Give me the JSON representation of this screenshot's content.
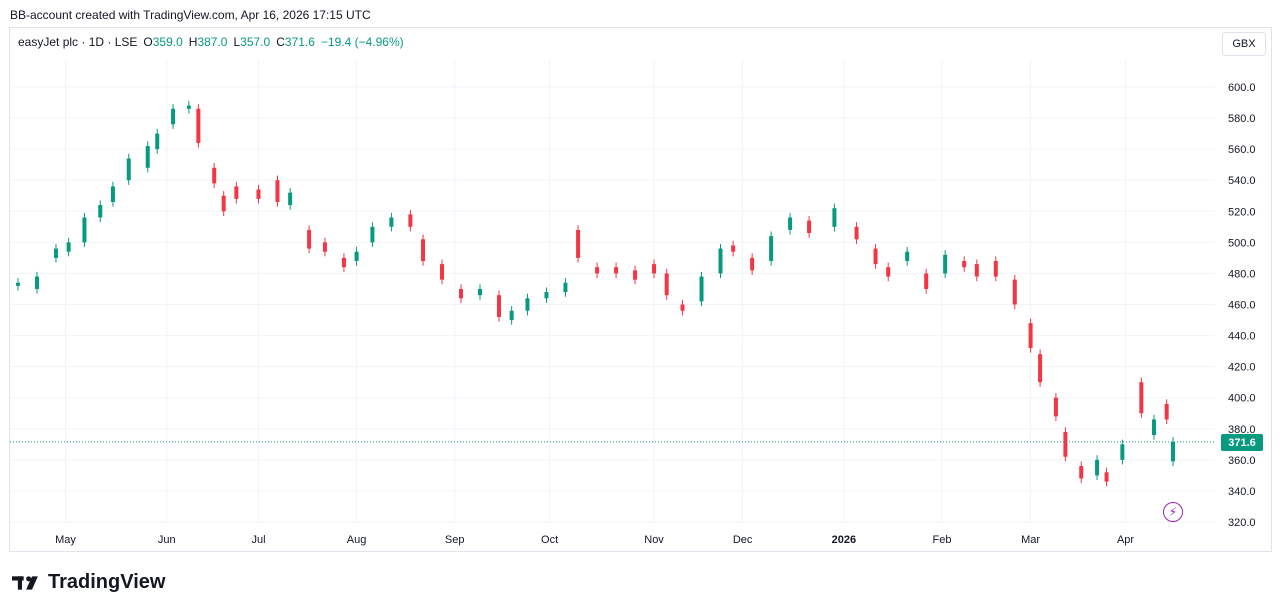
{
  "header": {
    "text": "BB-account created with TradingView.com, Apr 16, 2026 17:15 UTC"
  },
  "legend": {
    "symbol": "easyJet plc · 1D · LSE",
    "o_label": "O",
    "o_value": "359.0",
    "h_label": "H",
    "h_value": "387.0",
    "l_label": "L",
    "l_value": "357.0",
    "c_label": "C",
    "c_value": "371.6",
    "change": "−19.4 (−4.96%)"
  },
  "currency": "GBX",
  "last_price_label": "371.6",
  "brand": {
    "name": "TradingView",
    "icon": "tradingview-logo-icon"
  },
  "colors": {
    "up": "#089981",
    "down": "#f23645",
    "grid": "#f0f3fa",
    "text": "#131722"
  },
  "chart_data": {
    "type": "candlestick",
    "title": "",
    "xlabel": "",
    "ylabel": "",
    "ylim": [
      320,
      610
    ],
    "y_ticks": [
      "600.0",
      "580.0",
      "560.0",
      "540.0",
      "520.0",
      "500.0",
      "480.0",
      "460.0",
      "440.0",
      "420.0",
      "400.0",
      "380.0",
      "360.0",
      "340.0",
      "320.0"
    ],
    "x_ticks": [
      {
        "label": "May",
        "date": "2025-05-01"
      },
      {
        "label": "Jun",
        "date": "2025-06-02"
      },
      {
        "label": "Jul",
        "date": "2025-07-01"
      },
      {
        "label": "Aug",
        "date": "2025-08-01"
      },
      {
        "label": "Sep",
        "date": "2025-09-01"
      },
      {
        "label": "Oct",
        "date": "2025-10-01"
      },
      {
        "label": "Nov",
        "date": "2025-11-03"
      },
      {
        "label": "Dec",
        "date": "2025-12-01"
      },
      {
        "label": "2026",
        "date": "2026-01-02",
        "bold": true
      },
      {
        "label": "Feb",
        "date": "2026-02-02"
      },
      {
        "label": "Mar",
        "date": "2026-03-02"
      },
      {
        "label": "Apr",
        "date": "2026-04-01"
      }
    ],
    "date_range": [
      "2025-04-16",
      "2026-04-16"
    ],
    "last_price": 371.6,
    "series": [
      {
        "date": "2025-04-16",
        "o": 472,
        "c": 474
      },
      {
        "date": "2025-04-22",
        "o": 470,
        "c": 478
      },
      {
        "date": "2025-04-28",
        "o": 490,
        "c": 496
      },
      {
        "date": "2025-05-02",
        "o": 494,
        "c": 500
      },
      {
        "date": "2025-05-07",
        "o": 500,
        "c": 516
      },
      {
        "date": "2025-05-12",
        "o": 516,
        "c": 524
      },
      {
        "date": "2025-05-16",
        "o": 526,
        "c": 536
      },
      {
        "date": "2025-05-21",
        "o": 540,
        "c": 554
      },
      {
        "date": "2025-05-27",
        "o": 548,
        "c": 562
      },
      {
        "date": "2025-05-30",
        "o": 560,
        "c": 570
      },
      {
        "date": "2025-06-04",
        "o": 576,
        "c": 586
      },
      {
        "date": "2025-06-09",
        "o": 586,
        "c": 588
      },
      {
        "date": "2025-06-12",
        "o": 586,
        "c": 564
      },
      {
        "date": "2025-06-17",
        "o": 548,
        "c": 538
      },
      {
        "date": "2025-06-20",
        "o": 530,
        "c": 520
      },
      {
        "date": "2025-06-24",
        "o": 536,
        "c": 528
      },
      {
        "date": "2025-07-01",
        "o": 534,
        "c": 528
      },
      {
        "date": "2025-07-07",
        "o": 540,
        "c": 526
      },
      {
        "date": "2025-07-11",
        "o": 524,
        "c": 532
      },
      {
        "date": "2025-07-17",
        "o": 508,
        "c": 496
      },
      {
        "date": "2025-07-22",
        "o": 500,
        "c": 494
      },
      {
        "date": "2025-07-28",
        "o": 490,
        "c": 484
      },
      {
        "date": "2025-08-01",
        "o": 488,
        "c": 494
      },
      {
        "date": "2025-08-06",
        "o": 500,
        "c": 510
      },
      {
        "date": "2025-08-12",
        "o": 510,
        "c": 516
      },
      {
        "date": "2025-08-18",
        "o": 518,
        "c": 510
      },
      {
        "date": "2025-08-22",
        "o": 502,
        "c": 488
      },
      {
        "date": "2025-08-28",
        "o": 486,
        "c": 476
      },
      {
        "date": "2025-09-03",
        "o": 470,
        "c": 464
      },
      {
        "date": "2025-09-09",
        "o": 466,
        "c": 470
      },
      {
        "date": "2025-09-15",
        "o": 466,
        "c": 452
      },
      {
        "date": "2025-09-19",
        "o": 450,
        "c": 456
      },
      {
        "date": "2025-09-24",
        "o": 456,
        "c": 464
      },
      {
        "date": "2025-09-30",
        "o": 464,
        "c": 468
      },
      {
        "date": "2025-10-06",
        "o": 468,
        "c": 474
      },
      {
        "date": "2025-10-10",
        "o": 508,
        "c": 490
      },
      {
        "date": "2025-10-16",
        "o": 484,
        "c": 480
      },
      {
        "date": "2025-10-22",
        "o": 484,
        "c": 480
      },
      {
        "date": "2025-10-28",
        "o": 482,
        "c": 476
      },
      {
        "date": "2025-11-03",
        "o": 486,
        "c": 480
      },
      {
        "date": "2025-11-07",
        "o": 480,
        "c": 466
      },
      {
        "date": "2025-11-12",
        "o": 460,
        "c": 456
      },
      {
        "date": "2025-11-18",
        "o": 462,
        "c": 478
      },
      {
        "date": "2025-11-24",
        "o": 480,
        "c": 496
      },
      {
        "date": "2025-11-28",
        "o": 498,
        "c": 494
      },
      {
        "date": "2025-12-04",
        "o": 490,
        "c": 482
      },
      {
        "date": "2025-12-10",
        "o": 488,
        "c": 504
      },
      {
        "date": "2025-12-16",
        "o": 508,
        "c": 516
      },
      {
        "date": "2025-12-22",
        "o": 514,
        "c": 506
      },
      {
        "date": "2025-12-30",
        "o": 510,
        "c": 522
      },
      {
        "date": "2026-01-06",
        "o": 510,
        "c": 502
      },
      {
        "date": "2026-01-12",
        "o": 496,
        "c": 486
      },
      {
        "date": "2026-01-16",
        "o": 484,
        "c": 478
      },
      {
        "date": "2026-01-22",
        "o": 488,
        "c": 494
      },
      {
        "date": "2026-01-28",
        "o": 480,
        "c": 470
      },
      {
        "date": "2026-02-03",
        "o": 480,
        "c": 492
      },
      {
        "date": "2026-02-09",
        "o": 488,
        "c": 484
      },
      {
        "date": "2026-02-13",
        "o": 486,
        "c": 478
      },
      {
        "date": "2026-02-19",
        "o": 488,
        "c": 478
      },
      {
        "date": "2026-02-25",
        "o": 476,
        "c": 460
      },
      {
        "date": "2026-03-02",
        "o": 448,
        "c": 432
      },
      {
        "date": "2026-03-05",
        "o": 428,
        "c": 410
      },
      {
        "date": "2026-03-10",
        "o": 400,
        "c": 388
      },
      {
        "date": "2026-03-13",
        "o": 378,
        "c": 362
      },
      {
        "date": "2026-03-18",
        "o": 356,
        "c": 348
      },
      {
        "date": "2026-03-23",
        "o": 350,
        "c": 360
      },
      {
        "date": "2026-03-26",
        "o": 352,
        "c": 346
      },
      {
        "date": "2026-03-31",
        "o": 360,
        "c": 370
      },
      {
        "date": "2026-04-06",
        "o": 410,
        "c": 390
      },
      {
        "date": "2026-04-10",
        "o": 376,
        "c": 386
      },
      {
        "date": "2026-04-14",
        "o": 396,
        "c": 386
      },
      {
        "date": "2026-04-16",
        "o": 359,
        "c": 371.6
      }
    ]
  }
}
